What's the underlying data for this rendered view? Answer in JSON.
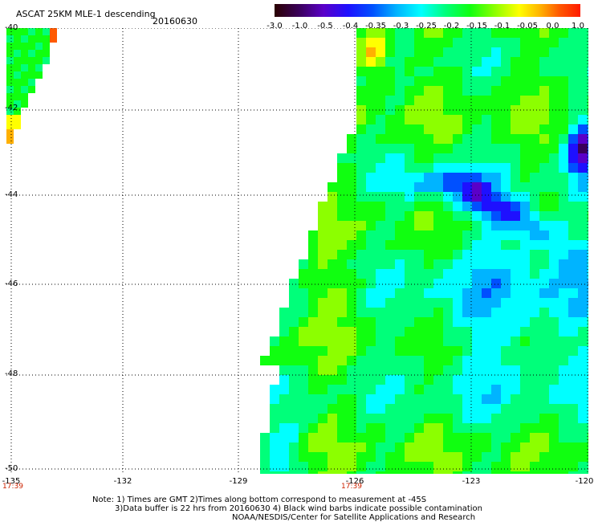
{
  "header": {
    "title": "ASCAT 25KM MLE-1 descending",
    "date": "20160630"
  },
  "colorbar": {
    "ticks": [
      "-3.0",
      "-1.0",
      "-0.5",
      "-0.4",
      "-0.35",
      "-0.3",
      "-0.25",
      "-0.2",
      "-0.15",
      "-0.1",
      "-0.05",
      "0.0",
      "1.0"
    ],
    "colors": [
      "#2a0000",
      "#3a005a",
      "#5a00c8",
      "#1e10ff",
      "#0050ff",
      "#00b4ff",
      "#00ffff",
      "#00ff7a",
      "#10ff10",
      "#8cff00",
      "#ffff00",
      "#ffb000",
      "#ff5a00",
      "#ff1a00"
    ]
  },
  "map": {
    "lat_labels": [
      "-40",
      "-42",
      "-44",
      "-46",
      "-48",
      "-50"
    ],
    "lon_labels": [
      "-135",
      "-132",
      "-129",
      "-126",
      "-123",
      "-120"
    ],
    "time_labels": [
      "17:39",
      "17:39"
    ]
  },
  "notes": {
    "line1": "Note: 1) Times are GMT 2)Times along bottom correspond to measurement at -45S",
    "line2": "3)Data buffer is 22 hrs from 20160630 4) Black wind barbs indicate possible contamination",
    "line3": "NOAA/NESDIS/Center for Satellite Applications and Research"
  }
}
